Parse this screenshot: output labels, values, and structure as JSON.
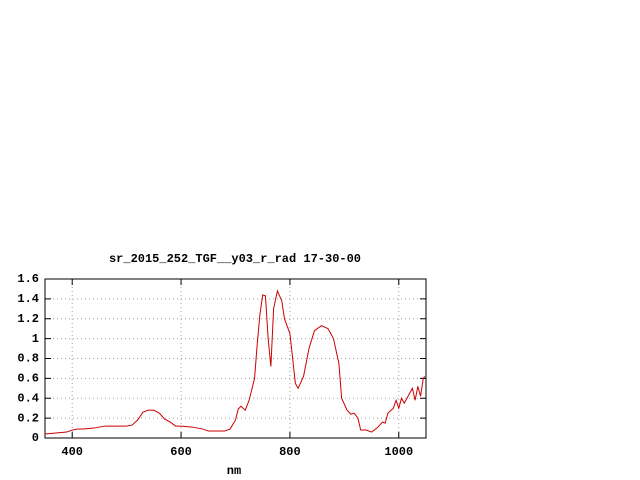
{
  "chart_data": {
    "type": "line",
    "title": "sr_2015_252_TGF__y03_r_rad 17-30-00",
    "x_label": "nm",
    "x": [
      350,
      370,
      390,
      400,
      410,
      420,
      440,
      460,
      480,
      500,
      510,
      520,
      530,
      540,
      550,
      560,
      570,
      580,
      590,
      600,
      620,
      640,
      650,
      680,
      690,
      700,
      705,
      710,
      718,
      725,
      735,
      740,
      745,
      750,
      755,
      760,
      765,
      770,
      777,
      785,
      790,
      800,
      805,
      810,
      815,
      825,
      835,
      845,
      850,
      858,
      870,
      880,
      890,
      895,
      905,
      912,
      918,
      925,
      930,
      940,
      950,
      960,
      970,
      975,
      980,
      990,
      995,
      1000,
      1005,
      1010,
      1020,
      1025,
      1030,
      1035,
      1040,
      1045,
      1048
    ],
    "series": [
      {
        "color": "#cc0000",
        "values": [
          0.04,
          0.05,
          0.06,
          0.08,
          0.09,
          0.09,
          0.1,
          0.12,
          0.12,
          0.12,
          0.13,
          0.18,
          0.26,
          0.28,
          0.28,
          0.25,
          0.19,
          0.16,
          0.12,
          0.12,
          0.11,
          0.09,
          0.07,
          0.07,
          0.09,
          0.18,
          0.29,
          0.32,
          0.28,
          0.38,
          0.6,
          0.95,
          1.25,
          1.44,
          1.43,
          1.0,
          0.72,
          1.3,
          1.48,
          1.38,
          1.2,
          1.05,
          0.8,
          0.55,
          0.5,
          0.62,
          0.9,
          1.08,
          1.1,
          1.13,
          1.1,
          1.0,
          0.75,
          0.4,
          0.28,
          0.24,
          0.25,
          0.2,
          0.08,
          0.08,
          0.06,
          0.1,
          0.16,
          0.15,
          0.25,
          0.3,
          0.38,
          0.3,
          0.4,
          0.35,
          0.45,
          0.5,
          0.38,
          0.52,
          0.42,
          0.6,
          0.62
        ]
      }
    ],
    "xlim": [
      350,
      1050
    ],
    "xticks": [
      400,
      600,
      800,
      1000
    ],
    "ylim": [
      0,
      1.6
    ],
    "yticks": [
      0,
      0.2,
      0.4,
      0.6,
      0.8,
      1,
      1.2,
      1.4,
      1.6
    ],
    "grid": true
  }
}
